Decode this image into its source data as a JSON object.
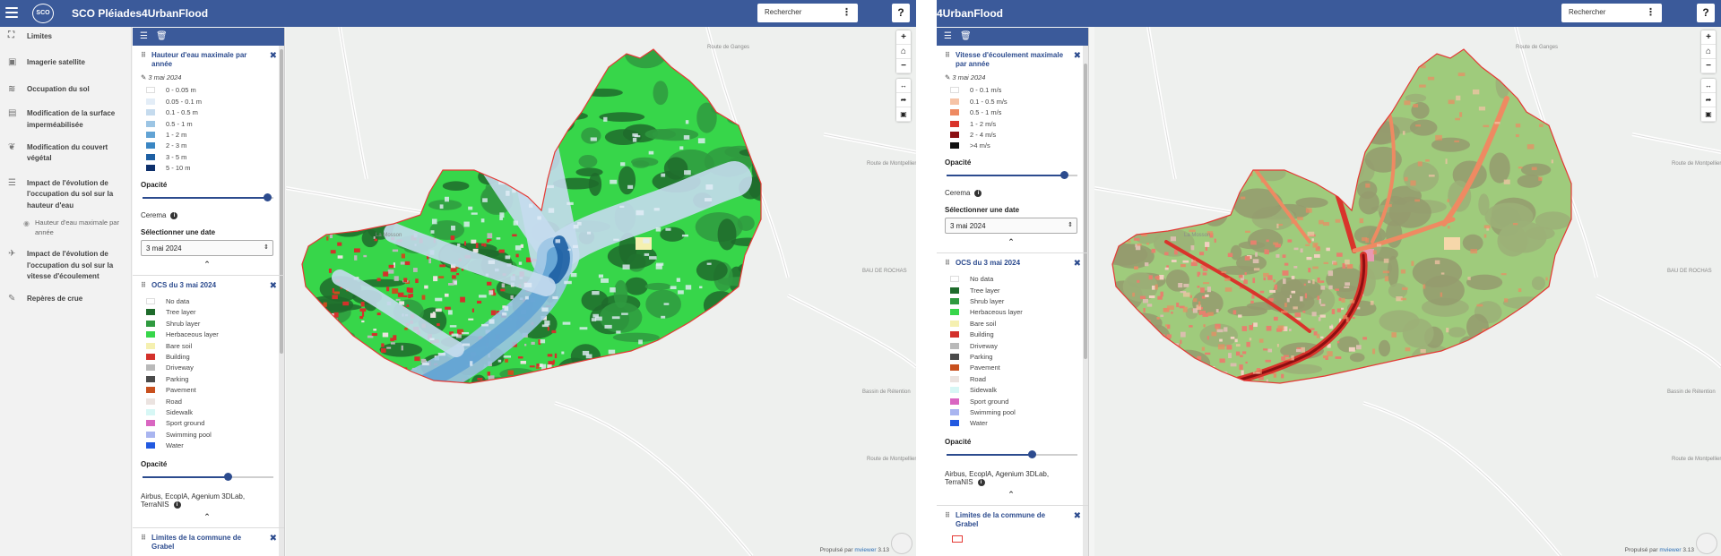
{
  "app": {
    "logo_text": "SCO",
    "title": "SCO Pléiades4UrbanFlood",
    "title_cropped": "4UrbanFlood",
    "search_placeholder": "Rechercher",
    "help_label": "?"
  },
  "sidebar": {
    "items": [
      {
        "label": "Limites",
        "icon": "boundary-icon"
      },
      {
        "label": "Imagerie satellite",
        "icon": "satellite-image-icon"
      },
      {
        "label": "Occupation du sol",
        "icon": "layers-icon"
      },
      {
        "label": "Modification de la surface imperméabilisée",
        "icon": "document-icon"
      },
      {
        "label": "Modification du couvert végétal",
        "icon": "leaf-icon"
      },
      {
        "label": "Impact de l'évolution de l'occupation du sol sur la hauteur d'eau",
        "icon": "list-icon"
      },
      {
        "label": "Impact de l'évolution de l'occupation du sol sur la vitesse d'écoulement",
        "icon": "flow-icon"
      },
      {
        "label": "Repères de crue",
        "icon": "ruler-icon"
      }
    ],
    "sub_item": "Hauteur d'eau maximale par année"
  },
  "left_panel": {
    "water_layer": {
      "title": "Hauteur d'eau maximale par année",
      "date": "3 mai 2024",
      "legend": [
        {
          "label": "0 - 0.05 m",
          "color": "#ffffff"
        },
        {
          "label": "0.05 - 0.1 m",
          "color": "#e3edf7"
        },
        {
          "label": "0.1 - 0.5 m",
          "color": "#c5dbee"
        },
        {
          "label": "0.5 - 1 m",
          "color": "#9cc5e4"
        },
        {
          "label": "1 - 2 m",
          "color": "#62a3d4"
        },
        {
          "label": "2 - 3 m",
          "color": "#3a86c3"
        },
        {
          "label": "3 - 5 m",
          "color": "#1d5fa3"
        },
        {
          "label": "5 - 10 m",
          "color": "#0d2f6b"
        }
      ],
      "opacity_label": "Opacité",
      "opacity": 0.95,
      "source": "Cerema",
      "date_select_label": "Sélectionner une date",
      "selected_date": "3 mai 2024"
    },
    "ocs_layer": {
      "title": "OCS du 3 mai 2024",
      "opacity_label": "Opacité",
      "opacity": 0.65,
      "source": "Airbus, EcoplA, Agenium 3DLab, TerraNIS"
    },
    "limits_layer": {
      "title": "Limites de la commune de Grabel"
    }
  },
  "right_panel": {
    "velocity_layer": {
      "title": "Vitesse d'écoulement maximale par année",
      "date": "3 mai 2024",
      "legend": [
        {
          "label": "0 - 0.1 m/s",
          "color": "#ffffff"
        },
        {
          "label": "0.1 - 0.5 m/s",
          "color": "#f6c3a6"
        },
        {
          "label": "0.5 - 1 m/s",
          "color": "#ee8a62"
        },
        {
          "label": "1 - 2 m/s",
          "color": "#d9342b"
        },
        {
          "label": "2 - 4 m/s",
          "color": "#8b0f12"
        },
        {
          "label": ">4 m/s",
          "color": "#111111"
        }
      ],
      "opacity_label": "Opacité",
      "opacity": 0.9,
      "source": "Cerema",
      "date_select_label": "Sélectionner une date",
      "selected_date": "3 mai 2024"
    },
    "ocs_layer": {
      "title": "OCS du 3 mai 2024",
      "opacity_label": "Opacité",
      "opacity": 0.65,
      "source": "Airbus, EcoplA, Agenium 3DLab, TerraNIS"
    },
    "limits_layer": {
      "title": "Limites de la commune de Grabel"
    }
  },
  "ocs_legend": [
    {
      "label": "No data",
      "color": "#ffffff"
    },
    {
      "label": "Tree layer",
      "color": "#1e6b2b"
    },
    {
      "label": "Shrub layer",
      "color": "#2f9a3f"
    },
    {
      "label": "Herbaceous layer",
      "color": "#37d64a"
    },
    {
      "label": "Bare soil",
      "color": "#f5f0b0"
    },
    {
      "label": "Building",
      "color": "#d3312b"
    },
    {
      "label": "Driveway",
      "color": "#b9b9b9"
    },
    {
      "label": "Parking",
      "color": "#4a4a4a"
    },
    {
      "label": "Pavement",
      "color": "#c8501e"
    },
    {
      "label": "Road",
      "color": "#ebe3e0"
    },
    {
      "label": "Sidewalk",
      "color": "#d7f7f5"
    },
    {
      "label": "Sport ground",
      "color": "#d966c1"
    },
    {
      "label": "Swimming pool",
      "color": "#a9b5f0"
    },
    {
      "label": "Water",
      "color": "#2259e0"
    }
  ],
  "map": {
    "credit_prefix": "Propulsé par",
    "credit_brand": "mviewer",
    "credit_version": "3.13",
    "place_labels": [
      "Route de Ganges",
      "Route de Montpellier",
      "La Mosson",
      "BAU DE ROCHAS",
      "Bassin de Rétention",
      "Route de Montpellier"
    ],
    "boundary_color": "#e53935"
  },
  "toolbar_icons": [
    "list-icon",
    "trash-icon"
  ],
  "map_controls": [
    "zoom-in-icon",
    "home-icon",
    "zoom-out-icon",
    "measure-icon",
    "share-icon",
    "image-export-icon"
  ]
}
